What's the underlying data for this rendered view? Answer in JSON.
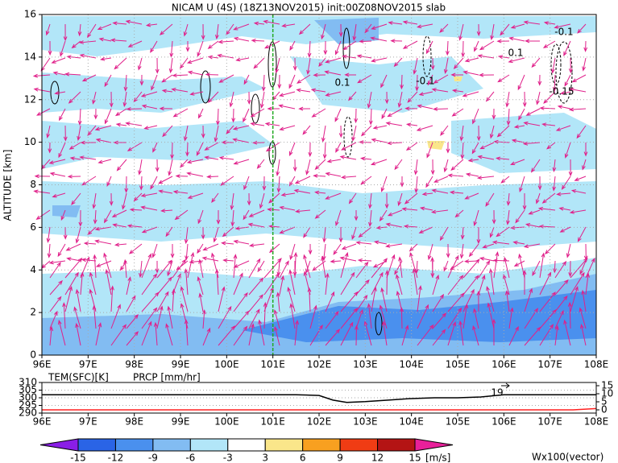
{
  "chart_data": [
    {
      "type": "vector-section",
      "title": "NICAM U (4S) (18Z13NOV2015) init:00Z08NOV2015 slab",
      "y_label": "ALTITUDE [km]",
      "xlim": [
        96,
        108
      ],
      "xticks": [
        {
          "value": 96,
          "label": "96E"
        },
        {
          "value": 97,
          "label": "97E"
        },
        {
          "value": 98,
          "label": "98E"
        },
        {
          "value": 99,
          "label": "99E"
        },
        {
          "value": 100,
          "label": "100E"
        },
        {
          "value": 101,
          "label": "101E"
        },
        {
          "value": 102,
          "label": "102E"
        },
        {
          "value": 103,
          "label": "103E"
        },
        {
          "value": 104,
          "label": "104E"
        },
        {
          "value": 105,
          "label": "105E"
        },
        {
          "value": 106,
          "label": "106E"
        },
        {
          "value": 107,
          "label": "107E"
        },
        {
          "value": 108,
          "label": "108E"
        }
      ],
      "ylim": [
        0,
        16
      ],
      "yticks": [
        0,
        2,
        4,
        6,
        8,
        10,
        12,
        14,
        16
      ],
      "grid": true,
      "vline": 101,
      "vline_color": "#22aa22",
      "vector_color": "#e0208a",
      "contour_labels": [
        "-0.1",
        "0.1",
        "0.1",
        "-0.1",
        "-0.15"
      ]
    },
    {
      "type": "line",
      "xlim": [
        96,
        108
      ],
      "xticks": [
        {
          "value": 96,
          "label": "96E"
        },
        {
          "value": 97,
          "label": "97E"
        },
        {
          "value": 98,
          "label": "98E"
        },
        {
          "value": 99,
          "label": "99E"
        },
        {
          "value": 100,
          "label": "100E"
        },
        {
          "value": 101,
          "label": "101E"
        },
        {
          "value": 102,
          "label": "102E"
        },
        {
          "value": 103,
          "label": "103E"
        },
        {
          "value": 104,
          "label": "104E"
        },
        {
          "value": 105,
          "label": "105E"
        },
        {
          "value": 106,
          "label": "106E"
        },
        {
          "value": 107,
          "label": "107E"
        },
        {
          "value": 108,
          "label": "108E"
        }
      ],
      "ylim": [
        290,
        310
      ],
      "yticks": [
        290,
        295,
        300,
        305,
        310
      ],
      "y2lim": [
        -2,
        17
      ],
      "y2ticks": [
        0,
        5,
        10,
        15
      ],
      "grid": true,
      "annotation": "19",
      "series": [
        {
          "name": "TEM(SFC)[K]",
          "color": "#000000",
          "x": [
            96,
            97,
            98,
            99,
            100,
            101,
            101.5,
            102,
            102.3,
            102.6,
            103,
            103.5,
            104,
            104.5,
            105,
            105.5,
            106,
            107,
            108
          ],
          "values": [
            302,
            302,
            302,
            302,
            302,
            302,
            302,
            301.5,
            298.5,
            297,
            297.5,
            298.5,
            299.5,
            300,
            300,
            300.5,
            302,
            302,
            302
          ]
        },
        {
          "name": "PRCP [mm/hr]",
          "color": "#ff2020",
          "axis": "y2",
          "x": [
            96,
            107.5,
            108
          ],
          "values": [
            0,
            0,
            0.8
          ]
        }
      ]
    },
    {
      "type": "colorbar",
      "levels": [
        -15,
        -12,
        -9,
        -6,
        -3,
        3,
        6,
        9,
        12,
        15
      ],
      "colors": [
        "#8a1ee6",
        "#2a64e6",
        "#4a90ee",
        "#82bcf2",
        "#b2e6f8",
        "#ffffff",
        "#fae68a",
        "#f8a020",
        "#f03c14",
        "#b41414",
        "#e8209a"
      ],
      "units": "[m/s]",
      "note": "Wx100(vector)",
      "note_color": "#cc2090"
    }
  ]
}
